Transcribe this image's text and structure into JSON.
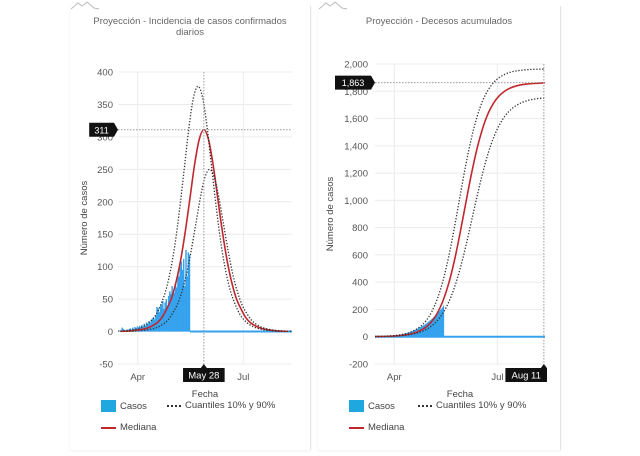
{
  "panels": [
    {
      "title": "Proyección - Incidencia de casos confirmados diarios",
      "legend": {
        "casos": "Casos",
        "cuantiles": "Cuantiles 10% y 90%",
        "mediana": "Mediana"
      },
      "colors": {
        "casos": "#35a2ee",
        "mediana": "#c0282d",
        "cuantiles": "#333333",
        "legend_casos": "#1fa8e0"
      },
      "chart_data": {
        "type": "line",
        "title": "Proyección - Incidencia de casos confirmados diarios",
        "xlabel": "Fecha",
        "ylabel": "Número de casos",
        "x_unit": "days since Mar 15",
        "xlim": [
          0,
          150
        ],
        "ylim": [
          -50,
          400
        ],
        "yticks": [
          -50,
          0,
          50,
          100,
          150,
          200,
          250,
          300,
          350,
          400
        ],
        "ytick_labels": [
          "-50",
          "0",
          "50",
          "100",
          "150",
          "200",
          "250",
          "300",
          "350",
          "400"
        ],
        "xticks": [
          {
            "day": 17,
            "label": "Apr"
          },
          {
            "day": 108,
            "label": "Jul"
          }
        ],
        "grid": true,
        "crosshair": {
          "x_day": 74,
          "x_label": "May 28",
          "y_value": 311,
          "y_label": "311"
        },
        "cases_type": "bar",
        "cases": {
          "x_start": 0,
          "x_step": 1,
          "values": [
            0,
            2,
            1,
            6,
            4,
            2,
            1,
            3,
            2,
            4,
            5,
            3,
            6,
            4,
            7,
            5,
            8,
            6,
            9,
            7,
            10,
            8,
            12,
            9,
            14,
            11,
            16,
            13,
            18,
            20,
            22,
            19,
            25,
            38,
            36,
            30,
            39,
            42,
            47,
            35,
            45,
            50,
            40,
            55,
            62,
            58,
            70,
            62,
            60,
            75,
            68,
            90,
            85,
            100,
            108,
            95,
            112,
            70,
            126,
            85,
            122,
            118
          ],
          "zero_after_to": 150
        },
        "series": [
          {
            "name": "Mediana",
            "style": "solid",
            "x_start": 2,
            "x_step": 4,
            "values": [
              0.4,
              0.6,
              1.0,
              1.6,
              2.5,
              3.8,
              5.9,
              9.2,
              14,
              22,
              35,
              51,
              76,
              110,
              154,
              205,
              257,
              296,
              311,
              296,
              257,
              205,
              154,
              110,
              76,
              51,
              35,
              22,
              14,
              9.2,
              5.9,
              3.8,
              2.5,
              1.6,
              1.0,
              0.6,
              0.4
            ]
          },
          {
            "name": "Cuantil 90%",
            "style": "dotted",
            "x_start": -3,
            "x_step": 4,
            "values": [
              0.5,
              0.8,
              1.2,
              1.9,
              3.0,
              4.6,
              7.2,
              11.2,
              17.4,
              26.7,
              42,
              62,
              92,
              133,
              187,
              249,
              312,
              360,
              378,
              360,
              312,
              249,
              187,
              133,
              92,
              62,
              42,
              26.7,
              17.4,
              11.2,
              7.2,
              4.6,
              3.0,
              1.9,
              1.2,
              0.8,
              0.5
            ]
          },
          {
            "name": "Cuantil 10%",
            "style": "dotted",
            "x_start": 7,
            "x_step": 4,
            "values": [
              0.3,
              0.5,
              0.8,
              1.3,
              2.0,
              3.1,
              4.8,
              7.4,
              11.5,
              17.7,
              28,
              41,
              61,
              88,
              124,
              165,
              206,
              238,
              250,
              238,
              206,
              165,
              124,
              88,
              61,
              41,
              28,
              17.7,
              11.5,
              7.4,
              4.8,
              3.1,
              2.0,
              1.3,
              0.8,
              0.5,
              0.3
            ]
          }
        ]
      }
    },
    {
      "title": "Proyección - Decesos acumulados",
      "legend": {
        "casos": "Casos",
        "cuantiles": "Cuantiles 10% y 90%",
        "mediana": "Mediana"
      },
      "colors": {
        "casos": "#35a2ee",
        "mediana": "#c0282d",
        "cuantiles": "#333333",
        "legend_casos": "#1fa8e0"
      },
      "chart_data": {
        "type": "line",
        "title": "Proyección - Decesos acumulados",
        "xlabel": "Fecha",
        "ylabel": "Número de casos",
        "x_unit": "days since Mar 15",
        "xlim": [
          0,
          150
        ],
        "ylim": [
          -200,
          2000
        ],
        "yticks": [
          -200,
          0,
          200,
          400,
          600,
          800,
          1000,
          1200,
          1400,
          1600,
          1800,
          2000
        ],
        "ytick_labels": [
          "-200",
          "0",
          "200",
          "400",
          "600",
          "800",
          "1,000",
          "1,200",
          "1,400",
          "1,600",
          "1,800",
          "2,000"
        ],
        "xticks": [
          {
            "day": 17,
            "label": "Apr"
          },
          {
            "day": 108,
            "label": "Jul"
          }
        ],
        "grid": true,
        "crosshair": {
          "x_day": 149,
          "x_label": "Aug 11",
          "y_value": 1863,
          "y_label": "1,863"
        },
        "cases_type": "area",
        "cases": {
          "x": [
            0,
            5,
            10,
            15,
            20,
            25,
            30,
            35,
            40,
            45,
            50,
            55,
            60,
            61
          ],
          "values": [
            0,
            1,
            3,
            6,
            12,
            20,
            32,
            48,
            70,
            95,
            130,
            170,
            220,
            240
          ],
          "zero_after_to": 150
        },
        "series": [
          {
            "name": "Mediana",
            "style": "solid",
            "x_start": 0,
            "x_step": 5,
            "values": [
              1,
              1.6,
              2.6,
              4.3,
              6.9,
              11,
              17.4,
              28,
              45,
              71,
              111,
              173,
              264,
              390,
              556,
              757,
              976,
              1190,
              1378,
              1528,
              1641,
              1718,
              1770,
              1804,
              1826,
              1840,
              1849,
              1854,
              1857,
              1859,
              1863
            ]
          },
          {
            "name": "Cuantil 90%",
            "style": "dotted",
            "x_start": 0,
            "x_step": 5,
            "values": [
              1.7,
              2.7,
              4.5,
              7.3,
              11.6,
              18.4,
              29.5,
              47.5,
              75,
              117,
              182,
              278,
              411,
              586,
              798,
              1029,
              1255,
              1453,
              1612,
              1731,
              1812,
              1867,
              1903,
              1926,
              1941,
              1950,
              1955,
              1959,
              1961,
              1962,
              1963
            ]
          },
          {
            "name": "Cuantil 10%",
            "style": "dotted",
            "x_start": 0,
            "x_step": 5,
            "values": [
              1.2,
              1.8,
              2.75,
              4.2,
              6.4,
              9.8,
              15,
              23,
              35,
              52,
              79,
              118,
              174,
              253,
              359,
              496,
              660,
              843,
              1028,
              1201,
              1350,
              1468,
              1557,
              1622,
              1667,
              1698,
              1719,
              1733,
              1742,
              1748,
              1751
            ]
          }
        ]
      }
    }
  ]
}
